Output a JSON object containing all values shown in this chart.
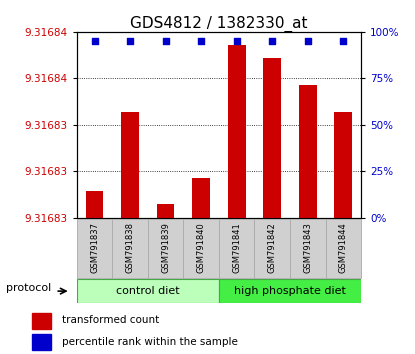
{
  "title": "GDS4812 / 1382330_at",
  "samples": [
    "GSM791837",
    "GSM791838",
    "GSM791839",
    "GSM791840",
    "GSM791841",
    "GSM791842",
    "GSM791843",
    "GSM791844"
  ],
  "red_exact": [
    9.31683,
    9.316836,
    9.316829,
    9.316831,
    9.316841,
    9.31684,
    9.316838,
    9.316836
  ],
  "blue_exact": [
    95,
    95,
    95,
    95,
    95,
    95,
    95,
    95
  ],
  "y_min": 9.316828,
  "y_max": 9.316842,
  "right_ticks": [
    0,
    25,
    50,
    75,
    100
  ],
  "bar_color": "#cc0000",
  "dot_color": "#0000cc",
  "ctrl_color_light": "#ccffcc",
  "ctrl_color": "#aaddaa",
  "hp_color": "#44dd44",
  "sample_box_color": "#d0d0d0",
  "sample_box_edge": "#aaaaaa",
  "title_fontsize": 11,
  "tick_fontsize": 7.5,
  "bar_width": 0.5,
  "left_ticks_labels": [
    "9.31683",
    "9.31683",
    "9.31684",
    "9.31684",
    "9.31684"
  ]
}
